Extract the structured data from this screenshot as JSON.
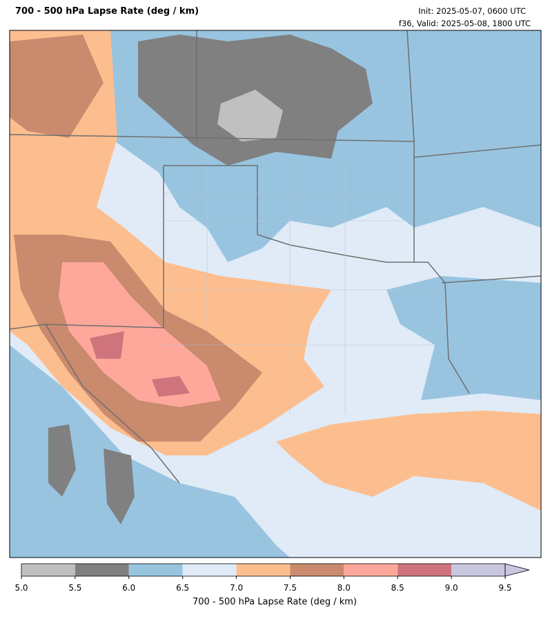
{
  "header": {
    "title": "700 - 500 hPa Lapse Rate (deg / km)",
    "init": "Init: 2025-05-07, 0600 UTC",
    "valid": "f36, Valid: 2025-05-08, 1800 UTC"
  },
  "colorbar": {
    "label": "700 - 500 hPa Lapse Rate (deg / km)",
    "lim": [
      5,
      9.5
    ],
    "ticks": [
      {
        "value": 5,
        "label": "5.0"
      },
      {
        "value": 5.5,
        "label": "5.5"
      },
      {
        "value": 6,
        "label": "6.0"
      },
      {
        "value": 6.5,
        "label": "6.5"
      },
      {
        "value": 7,
        "label": "7.0"
      },
      {
        "value": 7.5,
        "label": "7.5"
      },
      {
        "value": 8,
        "label": "8.0"
      },
      {
        "value": 8.5,
        "label": "8.5"
      },
      {
        "value": 9,
        "label": "9.0"
      },
      {
        "value": 9.5,
        "label": "9.5"
      }
    ],
    "colors": [
      "#c0c0c0",
      "#808080",
      "#98c4e0",
      "#e0ebf7",
      "#fdbe8f",
      "#c98a6e",
      "#fda89b",
      "#cf747c",
      "#c9c7e0"
    ]
  }
}
